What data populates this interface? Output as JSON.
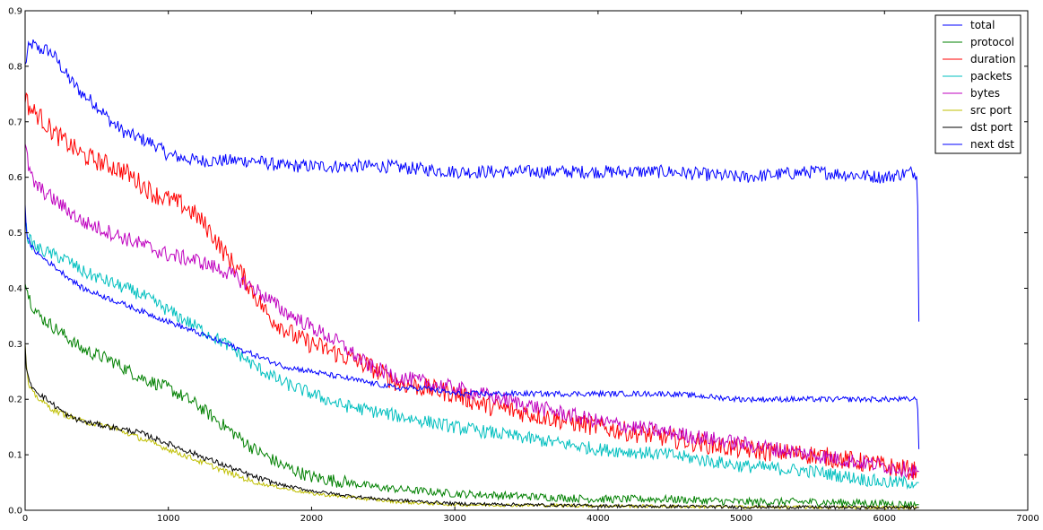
{
  "chart_data": {
    "type": "line",
    "title": "",
    "xlabel": "",
    "ylabel": "",
    "xlim": [
      0,
      7000
    ],
    "ylim": [
      0,
      0.9
    ],
    "xticks": [
      0,
      1000,
      2000,
      3000,
      4000,
      5000,
      6000,
      7000
    ],
    "xtick_labels": [
      "0",
      "1000",
      "2000",
      "3000",
      "4000",
      "5000",
      "6000",
      "7000"
    ],
    "yticks": [
      0.0,
      0.1,
      0.2,
      0.3,
      0.4,
      0.5,
      0.6,
      0.7,
      0.8,
      0.9
    ],
    "ytick_labels": [
      "0.0",
      "0.1",
      "0.2",
      "0.3",
      "0.4",
      "0.5",
      "0.6",
      "0.7",
      "0.8",
      "0.9"
    ],
    "grid": false,
    "legend_position": "top-right",
    "series": [
      {
        "name": "total",
        "color": "#0000ff",
        "x": [
          0,
          20,
          50,
          100,
          150,
          200,
          300,
          400,
          500,
          600,
          700,
          800,
          900,
          1000,
          1200,
          1400,
          1600,
          1800,
          2000,
          2500,
          3000,
          3500,
          4000,
          4500,
          5000,
          5500,
          6000,
          6200,
          6230,
          6240
        ],
        "y": [
          0.8,
          0.83,
          0.84,
          0.83,
          0.83,
          0.82,
          0.78,
          0.75,
          0.73,
          0.7,
          0.68,
          0.67,
          0.66,
          0.64,
          0.63,
          0.63,
          0.63,
          0.62,
          0.62,
          0.62,
          0.61,
          0.61,
          0.61,
          0.61,
          0.6,
          0.61,
          0.6,
          0.61,
          0.6,
          0.34
        ]
      },
      {
        "name": "protocol",
        "color": "#008000",
        "x": [
          0,
          20,
          50,
          100,
          200,
          300,
          400,
          600,
          800,
          1000,
          1200,
          1400,
          1600,
          1800,
          2000,
          2500,
          3000,
          3500,
          4000,
          4500,
          5000,
          5500,
          6000,
          6240
        ],
        "y": [
          0.42,
          0.39,
          0.37,
          0.35,
          0.33,
          0.31,
          0.29,
          0.27,
          0.24,
          0.22,
          0.19,
          0.15,
          0.11,
          0.08,
          0.06,
          0.04,
          0.03,
          0.025,
          0.02,
          0.02,
          0.015,
          0.015,
          0.012,
          0.01
        ]
      },
      {
        "name": "duration",
        "color": "#ff0000",
        "x": [
          0,
          20,
          50,
          100,
          200,
          300,
          400,
          500,
          600,
          700,
          800,
          900,
          1000,
          1100,
          1200,
          1300,
          1400,
          1500,
          1600,
          1700,
          1800,
          1900,
          2000,
          2200,
          2400,
          2600,
          2800,
          3000,
          3200,
          3400,
          3600,
          3800,
          4000,
          4500,
          5000,
          5500,
          6000,
          6240
        ],
        "y": [
          0.75,
          0.73,
          0.72,
          0.71,
          0.68,
          0.66,
          0.64,
          0.63,
          0.62,
          0.61,
          0.59,
          0.57,
          0.56,
          0.55,
          0.53,
          0.5,
          0.46,
          0.43,
          0.39,
          0.35,
          0.33,
          0.31,
          0.3,
          0.28,
          0.26,
          0.23,
          0.22,
          0.21,
          0.19,
          0.18,
          0.17,
          0.16,
          0.15,
          0.13,
          0.11,
          0.1,
          0.08,
          0.07
        ]
      },
      {
        "name": "packets",
        "color": "#00bfbf",
        "x": [
          0,
          20,
          50,
          100,
          200,
          300,
          400,
          600,
          800,
          1000,
          1200,
          1400,
          1600,
          1800,
          2000,
          2200,
          2400,
          2600,
          2800,
          3000,
          3500,
          4000,
          4500,
          5000,
          5500,
          6000,
          6240
        ],
        "y": [
          0.52,
          0.49,
          0.48,
          0.47,
          0.46,
          0.45,
          0.43,
          0.41,
          0.39,
          0.36,
          0.33,
          0.3,
          0.26,
          0.23,
          0.21,
          0.19,
          0.18,
          0.17,
          0.16,
          0.15,
          0.13,
          0.11,
          0.1,
          0.08,
          0.07,
          0.05,
          0.05
        ]
      },
      {
        "name": "bytes",
        "color": "#bf00bf",
        "x": [
          0,
          10,
          30,
          60,
          100,
          200,
          300,
          400,
          600,
          800,
          1000,
          1200,
          1400,
          1600,
          1800,
          2000,
          2200,
          2400,
          2600,
          2800,
          3000,
          3500,
          4000,
          4500,
          5000,
          5500,
          6000,
          6240
        ],
        "y": [
          0.66,
          0.64,
          0.61,
          0.59,
          0.58,
          0.56,
          0.54,
          0.52,
          0.5,
          0.48,
          0.46,
          0.45,
          0.43,
          0.4,
          0.36,
          0.33,
          0.3,
          0.26,
          0.24,
          0.23,
          0.22,
          0.19,
          0.16,
          0.14,
          0.12,
          0.1,
          0.08,
          0.07
        ]
      },
      {
        "name": "src port",
        "color": "#bfbf00",
        "x": [
          0,
          10,
          30,
          60,
          100,
          200,
          300,
          400,
          600,
          800,
          1000,
          1200,
          1400,
          1600,
          1800,
          2000,
          2200,
          2400,
          2600,
          3000,
          4000,
          5000,
          6000,
          6240
        ],
        "y": [
          0.3,
          0.25,
          0.22,
          0.21,
          0.2,
          0.18,
          0.17,
          0.16,
          0.15,
          0.13,
          0.11,
          0.09,
          0.07,
          0.05,
          0.04,
          0.03,
          0.025,
          0.02,
          0.015,
          0.01,
          0.008,
          0.006,
          0.005,
          0.005
        ]
      },
      {
        "name": "dst port",
        "color": "#000000",
        "x": [
          0,
          10,
          30,
          60,
          100,
          200,
          300,
          400,
          600,
          800,
          1000,
          1200,
          1400,
          1600,
          1800,
          2000,
          2200,
          2400,
          2600,
          3000,
          4000,
          5000,
          6000,
          6240
        ],
        "y": [
          0.3,
          0.25,
          0.23,
          0.22,
          0.21,
          0.19,
          0.17,
          0.16,
          0.15,
          0.14,
          0.12,
          0.1,
          0.08,
          0.06,
          0.045,
          0.035,
          0.028,
          0.022,
          0.018,
          0.012,
          0.008,
          0.006,
          0.005,
          0.005
        ]
      },
      {
        "name": "next dst",
        "color": "#0000ff",
        "x": [
          0,
          10,
          30,
          60,
          100,
          200,
          300,
          400,
          600,
          800,
          1000,
          1200,
          1400,
          1600,
          1800,
          2000,
          2200,
          2400,
          2600,
          2800,
          3000,
          3500,
          4000,
          4500,
          5000,
          5500,
          6000,
          6230,
          6240
        ],
        "y": [
          0.55,
          0.5,
          0.48,
          0.47,
          0.46,
          0.44,
          0.42,
          0.4,
          0.38,
          0.36,
          0.34,
          0.32,
          0.3,
          0.28,
          0.26,
          0.25,
          0.24,
          0.23,
          0.22,
          0.22,
          0.21,
          0.21,
          0.21,
          0.21,
          0.2,
          0.2,
          0.2,
          0.2,
          0.11
        ]
      }
    ]
  }
}
